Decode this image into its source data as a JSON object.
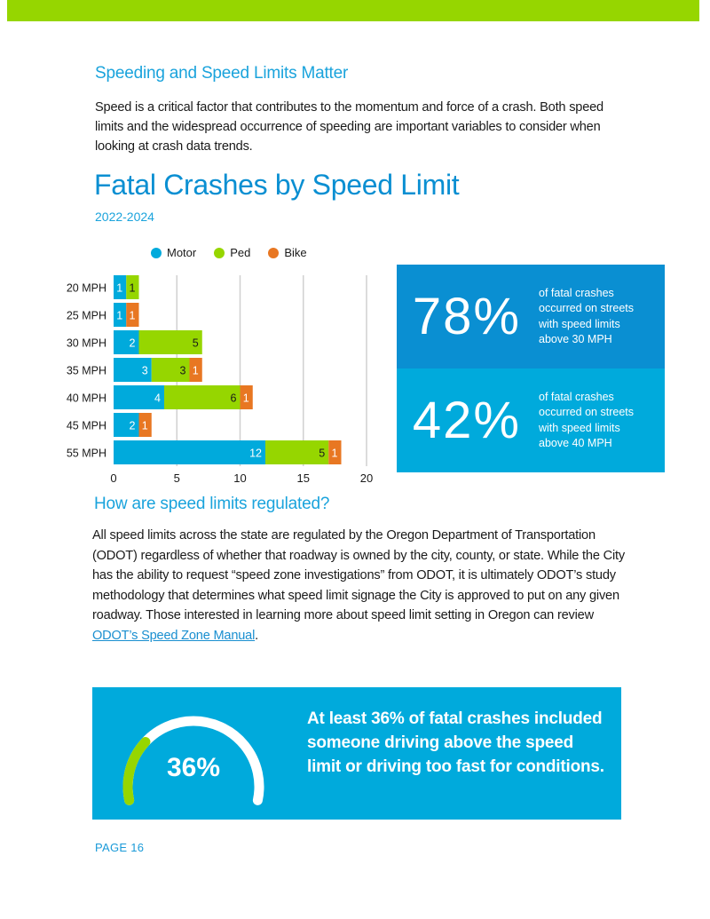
{
  "colors": {
    "top_bar": "#96d600",
    "motor": "#00aadc",
    "ped": "#96d600",
    "bike": "#e87722",
    "stat1_bg": "#0a8fd2",
    "stat2_bg": "#00aadc",
    "callout_bg": "#00aadc"
  },
  "section": {
    "heading": "Speeding and Speed Limits Matter",
    "intro": "Speed is a critical factor that contributes to the momentum and force of a crash. Both speed limits and the widespread occurrence of speeding are important variables to consider when looking at crash data trends."
  },
  "chart_title": "Fatal Crashes by Speed Limit",
  "chart_subtitle": "2022-2024",
  "chart_data": {
    "type": "bar",
    "orientation": "horizontal",
    "stacked": true,
    "title": "Fatal Crashes by Speed Limit",
    "subtitle": "2022-2024",
    "categories": [
      "20 MPH",
      "25 MPH",
      "30 MPH",
      "35 MPH",
      "40 MPH",
      "45 MPH",
      "55 MPH"
    ],
    "series": [
      {
        "name": "Motor",
        "color": "#00aadc",
        "values": [
          1,
          1,
          2,
          3,
          4,
          2,
          12
        ]
      },
      {
        "name": "Ped",
        "color": "#96d600",
        "values": [
          1,
          0,
          5,
          3,
          6,
          0,
          5
        ]
      },
      {
        "name": "Bike",
        "color": "#e87722",
        "values": [
          0,
          1,
          0,
          1,
          1,
          1,
          1
        ]
      }
    ],
    "xlim": [
      0,
      20
    ],
    "xticks": [
      0,
      5,
      10,
      15,
      20
    ],
    "grid": true,
    "legend": "top"
  },
  "stats": [
    {
      "value": "78%",
      "description": "of fatal crashes occurred on streets with speed limits above 30 MPH"
    },
    {
      "value": "42%",
      "description": "of fatal crashes occurred on streets with speed limits above 40 MPH"
    }
  ],
  "regulation": {
    "heading": "How are speed limits regulated?",
    "body": "All speed limits across the state are regulated by the Oregon Department of Transportation (ODOT) regardless of whether that roadway is owned by the city, county, or state. While the City has the ability to request “speed zone investigations” from ODOT,  it is ultimately ODOT’s study methodology that determines what speed limit signage the City is approved to put on any given roadway. Those interested in learning more about speed limit setting in Oregon can review ",
    "link_text": "ODOT’s Speed Zone Manual",
    "tail": "."
  },
  "callout": {
    "gauge_value": 36,
    "gauge_label": "36%",
    "message": "At least 36% of fatal crashes included someone driving above the speed limit or driving too fast for conditions."
  },
  "footer": {
    "page_label": "PAGE 16"
  }
}
